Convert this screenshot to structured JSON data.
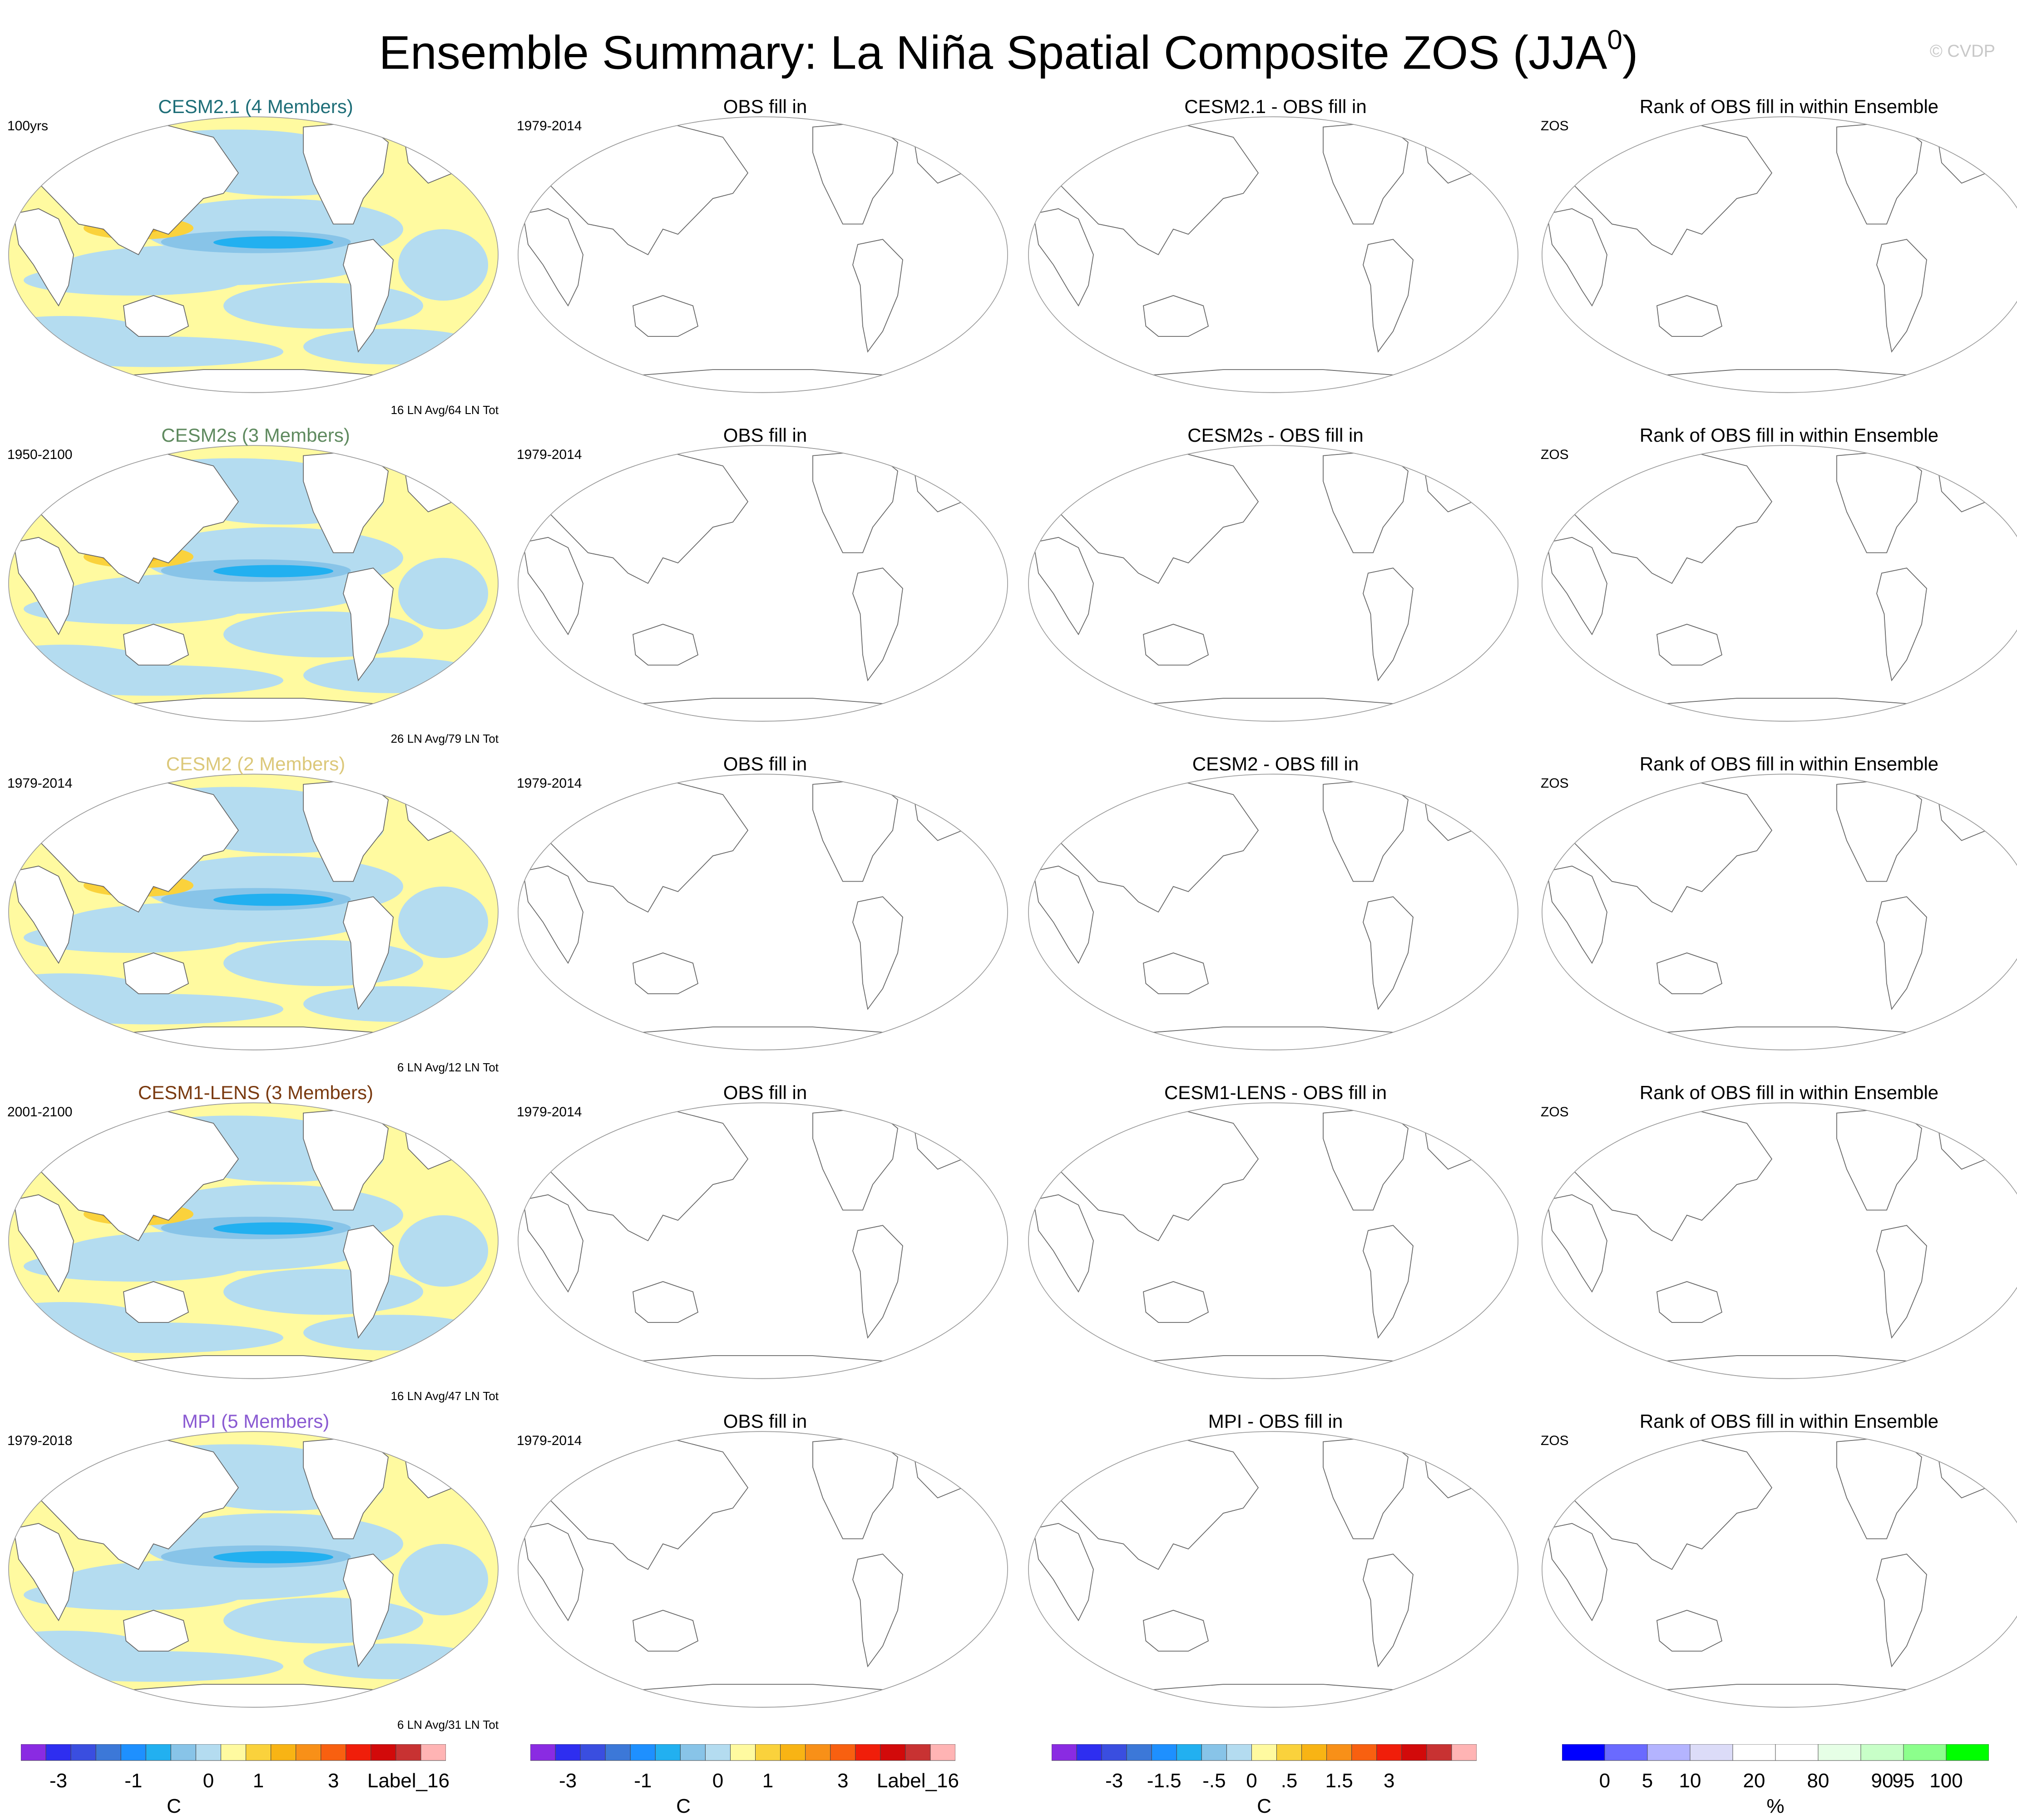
{
  "figure": {
    "title": "Ensemble Summary: La Niña Spatial Composite ZOS (JJA",
    "title_sup": "0",
    "title_close": ")",
    "copyright": "© CVDP"
  },
  "rows": [
    {
      "model": "CESM2.1 (4 Members)",
      "model_color": "#1e6e78",
      "period": "100yrs",
      "counts": "16 LN Avg/64 LN Tot",
      "obs_title": "OBS fill in",
      "obs_period": "1979-2014",
      "diff_title": "CESM2.1 - OBS fill in",
      "rank_title": "Rank of OBS fill in within Ensemble",
      "rank_var": "ZOS"
    },
    {
      "model": "CESM2s (3 Members)",
      "model_color": "#5f8a5f",
      "period": "1950-2100",
      "counts": "26 LN Avg/79 LN Tot",
      "obs_title": "OBS fill in",
      "obs_period": "1979-2014",
      "diff_title": "CESM2s - OBS fill in",
      "rank_title": "Rank of OBS fill in within Ensemble",
      "rank_var": "ZOS"
    },
    {
      "model": "CESM2 (2 Members)",
      "model_color": "#dcc87a",
      "period": "1979-2014",
      "counts": "6 LN Avg/12 LN Tot",
      "obs_title": "OBS fill in",
      "obs_period": "1979-2014",
      "diff_title": "CESM2 - OBS fill in",
      "rank_title": "Rank of OBS fill in within Ensemble",
      "rank_var": "ZOS"
    },
    {
      "model": "CESM1-LENS (3 Members)",
      "model_color": "#7a3a10",
      "period": "2001-2100",
      "counts": "16 LN Avg/47 LN Tot",
      "obs_title": "OBS fill in",
      "obs_period": "1979-2014",
      "diff_title": "CESM1-LENS - OBS fill in",
      "rank_title": "Rank of OBS fill in within Ensemble",
      "rank_var": "ZOS"
    },
    {
      "model": "MPI (5 Members)",
      "model_color": "#8a5ad2",
      "period": "1979-2018",
      "counts": "6 LN Avg/31 LN Tot",
      "obs_title": "OBS fill in",
      "obs_period": "1979-2014",
      "diff_title": "MPI - OBS fill in",
      "rank_title": "Rank of OBS fill in within Ensemble",
      "rank_var": "ZOS"
    }
  ],
  "chart_data": [
    {
      "type": "heatmap",
      "description_role": "model composite maps (column 1)",
      "projection": "Robinson, Pacific-centered",
      "colorbar": {
        "colors": [
          "#8a2be2",
          "#2e2ef0",
          "#3a4ee0",
          "#3c78d8",
          "#1e90ff",
          "#22b0f0",
          "#88c4e8",
          "#b4dcf0",
          "#fffaa0",
          "#fad23c",
          "#f8b414",
          "#f89018",
          "#f86010",
          "#f01e0a",
          "#d20a0a",
          "#c83232",
          "#ffb4b4"
        ],
        "tick_labels": [
          "-3",
          "-1",
          "0",
          "1",
          "3",
          "Label_16"
        ],
        "unit": "C"
      },
      "anomaly_regions": [
        "Western Pacific warm pool: positive (yellow/orange)",
        "Equatorial east Pacific cold tongue: negative (blue)"
      ]
    },
    {
      "type": "heatmap",
      "description_role": "OBS fill in (column 2, empty maps)",
      "colorbar": {
        "colors": [
          "#8a2be2",
          "#2e2ef0",
          "#3a4ee0",
          "#3c78d8",
          "#1e90ff",
          "#22b0f0",
          "#88c4e8",
          "#b4dcf0",
          "#fffaa0",
          "#fad23c",
          "#f8b414",
          "#f89018",
          "#f86010",
          "#f01e0a",
          "#d20a0a",
          "#c83232",
          "#ffb4b4"
        ],
        "tick_labels": [
          "-3",
          "-1",
          "0",
          "1",
          "3",
          "Label_16"
        ],
        "unit": "C"
      }
    },
    {
      "type": "heatmap",
      "description_role": "Model - OBS difference (column 3, empty maps)",
      "colorbar": {
        "colors": [
          "#8a2be2",
          "#2e2ef0",
          "#3a4ee0",
          "#3c78d8",
          "#1e90ff",
          "#22b0f0",
          "#88c4e8",
          "#b4dcf0",
          "#fffaa0",
          "#fad23c",
          "#f8b414",
          "#f89018",
          "#f86010",
          "#f01e0a",
          "#d20a0a",
          "#c83232",
          "#ffb4b4"
        ],
        "tick_labels": [
          "-3",
          "-1.5",
          "-.5",
          "0",
          ".5",
          "1.5",
          "3"
        ],
        "unit": "C"
      }
    },
    {
      "type": "heatmap",
      "description_role": "Rank of OBS within ensemble (column 4, empty maps)",
      "colorbar": {
        "colors": [
          "#0000ff",
          "#6a6aff",
          "#b4b4ff",
          "#dcdcf8",
          "#ffffff",
          "#ffffff",
          "#e6ffe6",
          "#c8ffc8",
          "#8cff8c",
          "#00ff00"
        ],
        "tick_labels": [
          "0",
          "5",
          "10",
          "20",
          "80",
          "90",
          "95",
          "100"
        ],
        "unit": "%"
      }
    }
  ]
}
